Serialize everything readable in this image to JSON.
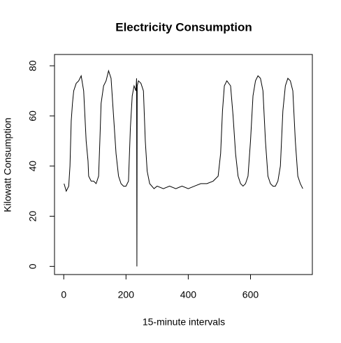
{
  "chart_data": {
    "type": "line",
    "title": "Electricity Consumption",
    "x_label": "15-minute intervals",
    "y_label": "Kilowatt Consumption",
    "x": [
      1,
      8,
      16,
      20,
      24,
      28,
      32,
      40,
      48,
      56,
      64,
      72,
      78,
      80,
      88,
      96,
      104,
      112,
      116,
      120,
      128,
      136,
      144,
      152,
      160,
      168,
      176,
      184,
      192,
      200,
      208,
      214,
      220,
      226,
      232,
      234,
      235,
      236,
      240,
      248,
      256,
      262,
      268,
      276,
      290,
      300,
      320,
      340,
      360,
      380,
      400,
      420,
      440,
      460,
      480,
      496,
      504,
      510,
      516,
      524,
      536,
      544,
      552,
      560,
      568,
      576,
      584,
      592,
      600,
      608,
      616,
      624,
      632,
      640,
      648,
      656,
      664,
      672,
      680,
      688,
      696,
      704,
      712,
      720,
      728,
      736,
      744,
      752,
      760,
      768
    ],
    "series": [
      {
        "name": "consumption",
        "color": "#000000",
        "values": [
          33,
          30,
          32,
          40,
          58,
          65,
          70,
          73,
          74,
          76,
          70,
          50,
          42,
          36,
          34,
          34,
          33,
          36,
          50,
          65,
          72,
          74,
          78,
          75,
          60,
          45,
          36,
          33,
          32,
          32,
          34,
          55,
          68,
          72,
          70,
          75,
          0,
          72,
          74,
          73,
          70,
          50,
          38,
          33,
          31,
          32,
          31,
          32,
          31,
          32,
          31,
          32,
          33,
          33,
          34,
          36,
          45,
          62,
          72,
          74,
          72,
          60,
          45,
          36,
          33,
          32,
          33,
          36,
          50,
          68,
          74,
          76,
          75,
          70,
          50,
          36,
          33,
          32,
          32,
          34,
          40,
          62,
          72,
          75,
          74,
          70,
          50,
          36,
          33,
          31
        ]
      }
    ],
    "xlim": [
      -29.7,
      798.7
    ],
    "ylim": [
      -3.25,
      84.5
    ],
    "xticks": [
      0,
      200,
      400,
      600
    ],
    "yticks": [
      0,
      20,
      40,
      60,
      80
    ]
  }
}
